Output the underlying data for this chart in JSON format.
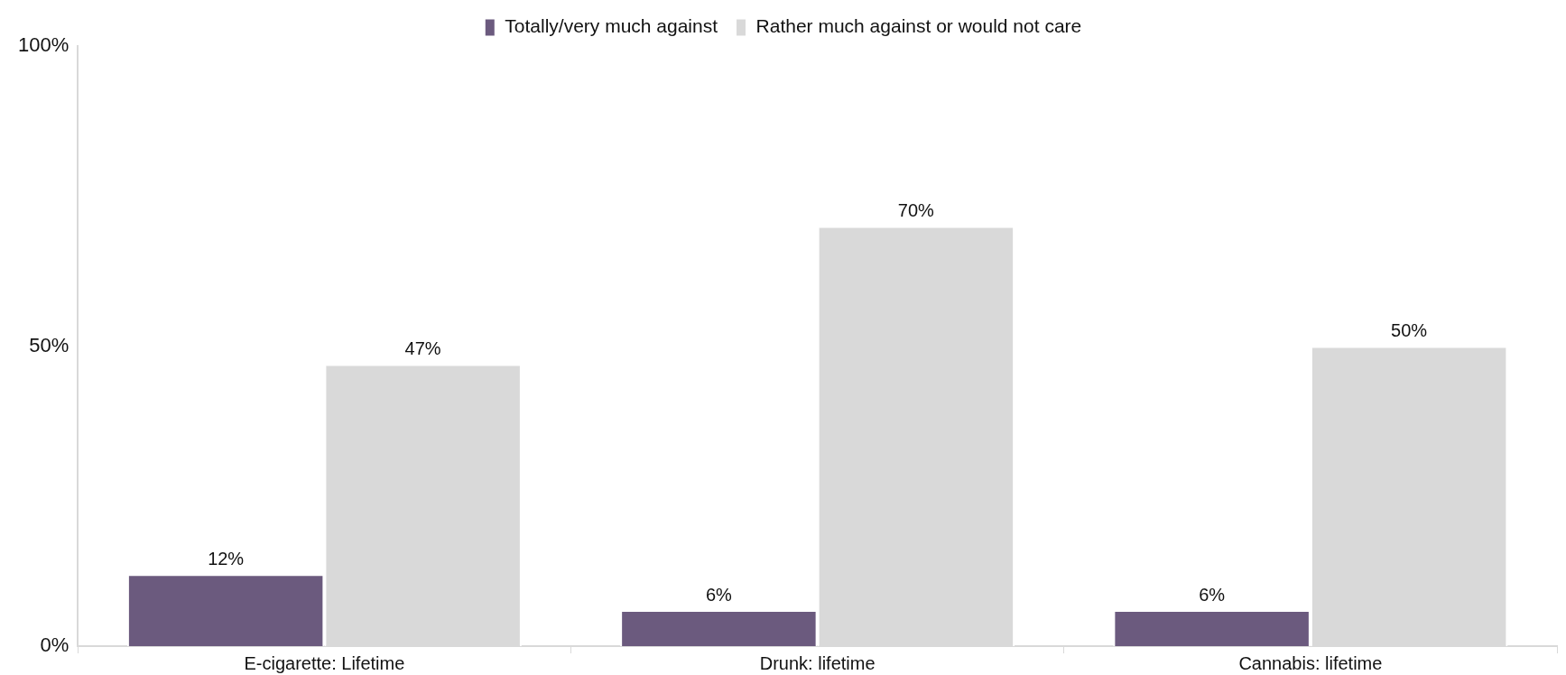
{
  "chart_data": {
    "type": "bar",
    "categories": [
      "E-cigarette: Lifetime",
      "Drunk: lifetime",
      "Cannabis: lifetime"
    ],
    "series": [
      {
        "name": "Totally/very much against",
        "color": "#6b5a7e",
        "values": [
          12,
          6,
          6
        ],
        "value_labels": [
          "12%",
          "6%",
          "6%"
        ]
      },
      {
        "name": "Rather much against or would not care",
        "color": "#d9d9d9",
        "values": [
          47,
          70,
          50
        ],
        "value_labels": [
          "47%",
          "70%",
          "50%"
        ]
      }
    ],
    "ylim": [
      0,
      100
    ],
    "yticks": [
      {
        "value": 0,
        "label": "0%"
      },
      {
        "value": 50,
        "label": "50%"
      },
      {
        "value": 100,
        "label": "100%"
      }
    ],
    "grid": false,
    "legend": "top"
  }
}
